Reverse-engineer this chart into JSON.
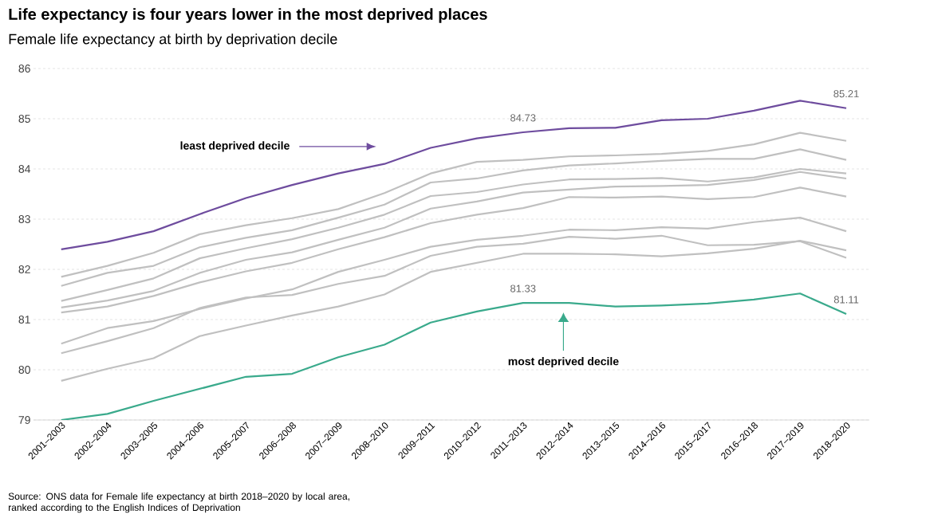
{
  "chart_data": {
    "type": "line",
    "title": "Life expectancy is four years lower in the most deprived places",
    "subtitle": "Female life expectancy at birth by deprivation decile",
    "categories": [
      "2001–2003",
      "2002–2004",
      "2003–2005",
      "2004–2006",
      "2005–2007",
      "2006–2008",
      "2007–2009",
      "2008–2010",
      "2009–2011",
      "2010–2012",
      "2011–2013",
      "2012–2014",
      "2013–2015",
      "2014–2016",
      "2015–2017",
      "2016–2018",
      "2017–2019",
      "2018–2020"
    ],
    "series": [
      {
        "color": "#c0c0c0",
        "values": [
          81.85,
          82.07,
          82.33,
          82.7,
          82.88,
          83.02,
          83.2,
          83.52,
          83.91,
          84.14,
          84.18,
          84.25,
          84.27,
          84.3,
          84.36,
          84.49,
          84.72,
          84.56
        ]
      },
      {
        "color": "#c0c0c0",
        "values": [
          81.67,
          81.93,
          82.07,
          82.44,
          82.63,
          82.78,
          83.03,
          83.29,
          83.73,
          83.81,
          83.97,
          84.07,
          84.11,
          84.16,
          84.2,
          84.2,
          84.39,
          84.18
        ]
      },
      {
        "color": "#c0c0c0",
        "values": [
          81.37,
          81.59,
          81.82,
          82.22,
          82.42,
          82.6,
          82.83,
          83.09,
          83.46,
          83.54,
          83.69,
          83.79,
          83.8,
          83.82,
          83.75,
          83.83,
          84.0,
          83.91
        ]
      },
      {
        "color": "#c0c0c0",
        "values": [
          81.24,
          81.38,
          81.57,
          81.93,
          82.19,
          82.34,
          82.59,
          82.83,
          83.21,
          83.35,
          83.53,
          83.59,
          83.65,
          83.66,
          83.68,
          83.78,
          83.94,
          83.81
        ]
      },
      {
        "color": "#c0c0c0",
        "values": [
          81.14,
          81.26,
          81.47,
          81.74,
          81.96,
          82.13,
          82.4,
          82.64,
          82.92,
          83.09,
          83.22,
          83.44,
          83.43,
          83.45,
          83.4,
          83.44,
          83.63,
          83.45
        ]
      },
      {
        "color": "#c0c0c0",
        "values": [
          80.52,
          80.83,
          80.97,
          81.21,
          81.42,
          81.6,
          81.95,
          82.19,
          82.45,
          82.59,
          82.67,
          82.79,
          82.78,
          82.84,
          82.81,
          82.94,
          83.03,
          82.76
        ]
      },
      {
        "color": "#c0c0c0",
        "values": [
          80.33,
          80.57,
          80.83,
          81.23,
          81.44,
          81.49,
          81.71,
          81.87,
          82.27,
          82.45,
          82.51,
          82.65,
          82.61,
          82.67,
          82.48,
          82.49,
          82.56,
          82.23
        ]
      },
      {
        "color": "#c0c0c0",
        "values": [
          79.78,
          80.02,
          80.23,
          80.67,
          80.88,
          81.08,
          81.26,
          81.5,
          81.95,
          82.13,
          82.31,
          82.31,
          82.3,
          82.26,
          82.32,
          82.41,
          82.57,
          82.38
        ]
      },
      {
        "color": "#6e4c9e",
        "values": [
          82.4,
          82.55,
          82.76,
          83.1,
          83.42,
          83.68,
          83.91,
          84.1,
          84.42,
          84.61,
          84.73,
          84.81,
          84.82,
          84.97,
          85.0,
          85.16,
          85.36,
          85.21
        ],
        "value_labels": [
          null,
          null,
          null,
          null,
          null,
          null,
          null,
          null,
          null,
          null,
          "84.73",
          null,
          null,
          null,
          null,
          null,
          null,
          "85.21"
        ]
      },
      {
        "color": "#3aaa8c",
        "values": [
          79.0,
          79.12,
          79.38,
          79.62,
          79.86,
          79.92,
          80.25,
          80.5,
          80.94,
          81.16,
          81.33,
          81.33,
          81.26,
          81.28,
          81.32,
          81.4,
          81.52,
          81.11
        ],
        "value_labels": [
          null,
          null,
          null,
          null,
          null,
          null,
          null,
          null,
          null,
          null,
          "81.33",
          null,
          null,
          null,
          null,
          null,
          null,
          "81.11"
        ]
      }
    ],
    "ylim": [
      79,
      86
    ],
    "yticks": [
      79,
      80,
      81,
      82,
      83,
      84,
      85,
      86
    ],
    "grid": "y",
    "marker": "none",
    "line_style": "solid",
    "annotations": [
      "least deprived decile",
      "most deprived decile",
      "Source: ONS data for Female life expectancy at birth 2018–2020 by local area, ranked according to the English Indices of Deprivation"
    ]
  }
}
